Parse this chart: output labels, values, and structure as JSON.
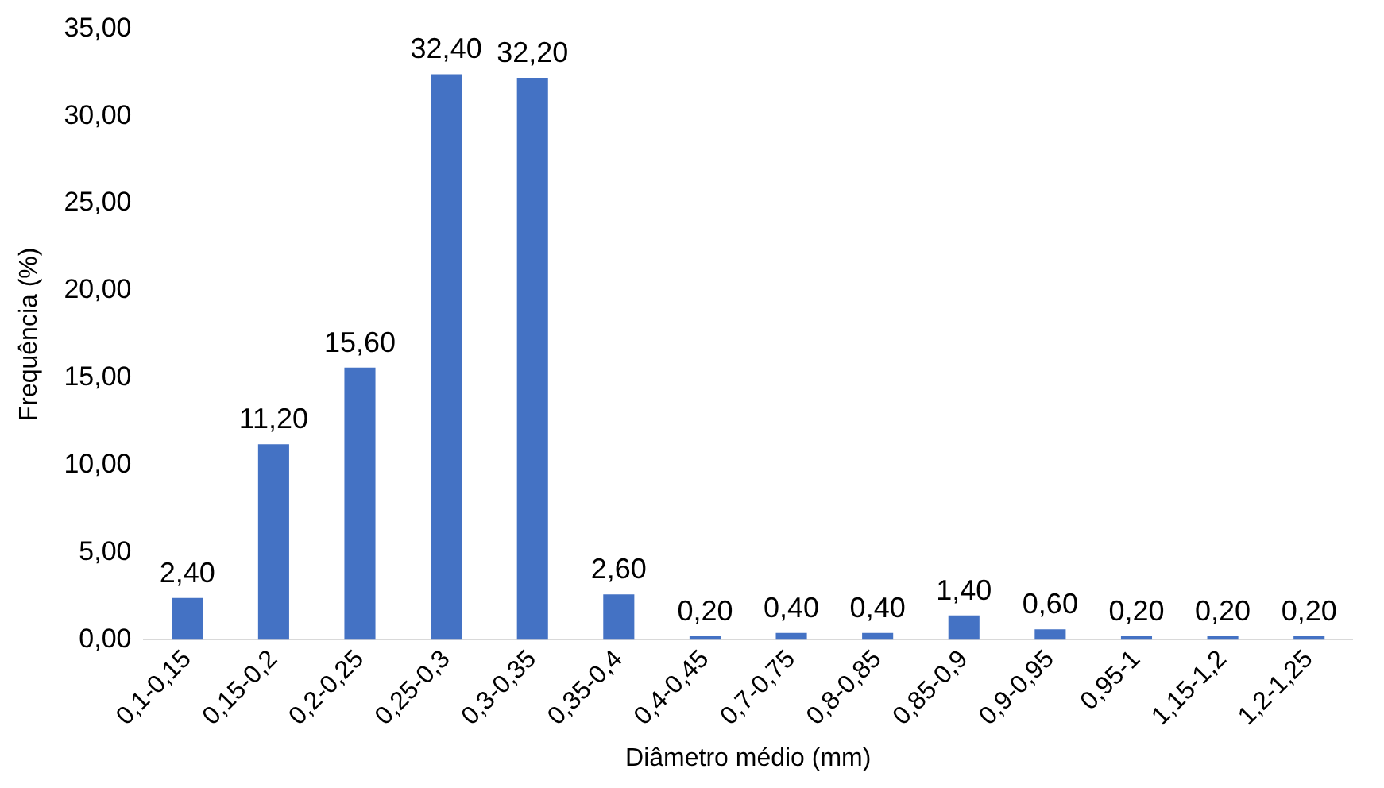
{
  "chart_data": {
    "type": "bar",
    "xlabel": "Diâmetro médio (mm)",
    "ylabel": "Frequência (%)",
    "categories": [
      "0,1-0,15",
      "0,15-0,2",
      "0,2-0,25",
      "0,25-0,3",
      "0,3-0,35",
      "0,35-0,4",
      "0,4-0,45",
      "0,7-0,75",
      "0,8-0,85",
      "0,85-0,9",
      "0,9-0,95",
      "0,95-1",
      "1,15-1,2",
      "1,2-1,25"
    ],
    "values": [
      2.4,
      11.2,
      15.6,
      32.4,
      32.2,
      2.6,
      0.2,
      0.4,
      0.4,
      1.4,
      0.6,
      0.2,
      0.2,
      0.2
    ],
    "value_labels": [
      "2,40",
      "11,20",
      "15,60",
      "32,40",
      "32,20",
      "2,60",
      "0,20",
      "0,40",
      "0,40",
      "1,40",
      "0,60",
      "0,20",
      "0,20",
      "0,20"
    ],
    "color": "#4472c4",
    "ylim": [
      0,
      35
    ],
    "yticks": [
      {
        "value": 0,
        "label": "0,00"
      },
      {
        "value": 5,
        "label": "5,00"
      },
      {
        "value": 10,
        "label": "10,00"
      },
      {
        "value": 15,
        "label": "15,00"
      },
      {
        "value": 20,
        "label": "20,00"
      },
      {
        "value": 25,
        "label": "25,00"
      },
      {
        "value": 30,
        "label": "30,00"
      },
      {
        "value": 35,
        "label": "35,00"
      }
    ],
    "grid": false,
    "legend": false
  }
}
